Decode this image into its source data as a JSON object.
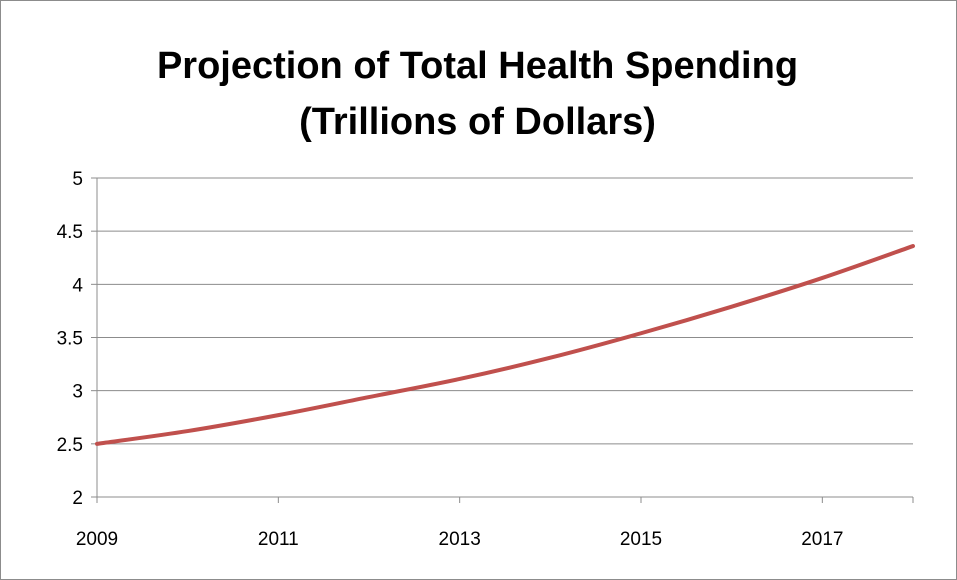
{
  "chart_data": {
    "type": "line",
    "title_lines": [
      "Projection of Total Health Spending",
      "(Trillions of Dollars)"
    ],
    "xlabel": "",
    "ylabel": "",
    "xlim": [
      2009,
      2018
    ],
    "ylim": [
      2,
      5
    ],
    "x_ticks": [
      "2009",
      "2011",
      "2013",
      "2015",
      "2017"
    ],
    "x_tick_values": [
      2009,
      2011,
      2013,
      2015,
      2017
    ],
    "y_ticks": [
      "2",
      "2.5",
      "3",
      "3.5",
      "4",
      "4.5",
      "5"
    ],
    "y_tick_values": [
      2,
      2.5,
      3,
      3.5,
      4,
      4.5,
      5
    ],
    "grid": true,
    "legend": "none",
    "series": [
      {
        "color": "#c0504d",
        "x": [
          2009,
          2010,
          2011,
          2012,
          2013,
          2014,
          2015,
          2016,
          2017,
          2018
        ],
        "y": [
          2.5,
          2.62,
          2.77,
          2.94,
          3.11,
          3.31,
          3.54,
          3.79,
          4.06,
          4.36
        ]
      }
    ]
  }
}
